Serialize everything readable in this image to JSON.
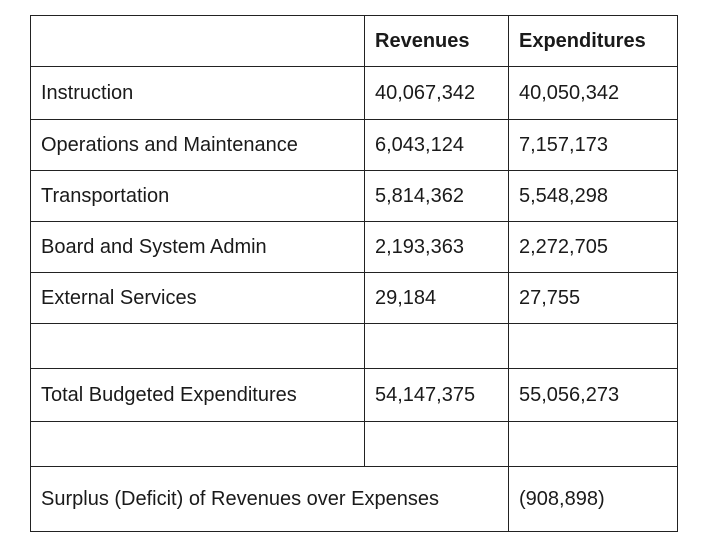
{
  "table": {
    "headers": [
      "",
      "Revenues",
      "Expenditures"
    ],
    "rows": [
      {
        "label": "Instruction",
        "revenues": "40,067,342",
        "expenditures": "40,050,342"
      },
      {
        "label": "Operations and Maintenance",
        "revenues": "6,043,124",
        "expenditures": "7,157,173"
      },
      {
        "label": "Transportation",
        "revenues": "5,814,362",
        "expenditures": "5,548,298"
      },
      {
        "label": "Board and System Admin",
        "revenues": "2,193,363",
        "expenditures": "2,272,705"
      },
      {
        "label": "External Services",
        "revenues": "29,184",
        "expenditures": "27,755"
      }
    ],
    "total": {
      "label": "Total Budgeted Expenditures",
      "revenues": "54,147,375",
      "expenditures": "55,056,273"
    },
    "surplus": {
      "label": "Surplus (Deficit) of Revenues over Expenses",
      "value": "(908,898)"
    }
  }
}
